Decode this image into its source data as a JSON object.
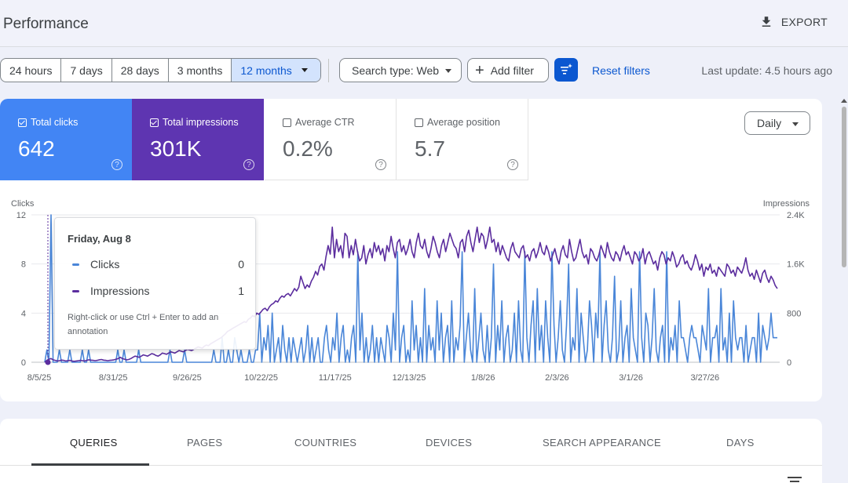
{
  "header": {
    "title": "Performance",
    "export_label": "EXPORT",
    "export_icon": "download-icon"
  },
  "filters": {
    "date_ranges": [
      "24 hours",
      "7 days",
      "28 days",
      "3 months",
      "12 months"
    ],
    "active_range": "12 months",
    "search_type": "Search type: Web",
    "add_filter": "Add filter",
    "reset_filters": "Reset filters",
    "last_update": "Last update: 4.5 hours ago"
  },
  "metrics": {
    "clicks": {
      "label": "Total clicks",
      "value": "642",
      "checked": true,
      "color": "#4285f4"
    },
    "impressions": {
      "label": "Total impressions",
      "value": "301K",
      "checked": true,
      "color": "#5e35b1"
    },
    "ctr": {
      "label": "Average CTR",
      "value": "0.2%",
      "checked": false
    },
    "position": {
      "label": "Average position",
      "value": "5.7",
      "checked": false
    }
  },
  "granularity": "Daily",
  "tooltip": {
    "date": "Friday, Aug 8",
    "clicks_label": "Clicks",
    "clicks_value": "0",
    "impressions_label": "Impressions",
    "impressions_value": "1",
    "note": "Right-click or use Ctrl + Enter to add an annotation"
  },
  "chart_data": {
    "type": "line",
    "left_axis": {
      "label": "Clicks",
      "ticks": [
        "0",
        "4",
        "8",
        "12"
      ],
      "range": [
        0,
        12
      ]
    },
    "right_axis": {
      "label": "Impressions",
      "ticks": [
        "0",
        "800",
        "1.6K",
        "2.4K"
      ],
      "range": [
        0,
        2400
      ]
    },
    "x_ticks": [
      "8/5/25",
      "8/31/25",
      "9/26/25",
      "10/22/25",
      "11/17/25",
      "12/13/25",
      "1/8/26",
      "2/3/26",
      "3/1/26",
      "3/27/26"
    ],
    "grid": true,
    "series": [
      {
        "name": "Clicks",
        "axis": "left",
        "color": "#4a86d8",
        "values": [
          0,
          1,
          0,
          12,
          0,
          0,
          0,
          1,
          0,
          0,
          0,
          0,
          1,
          0,
          0,
          0,
          0,
          0,
          1,
          0,
          0,
          1,
          0,
          0,
          0,
          0,
          0,
          0,
          0,
          0,
          0,
          0,
          0,
          0,
          0,
          1,
          0,
          0,
          1,
          0,
          0,
          0,
          0,
          0,
          0,
          1,
          0,
          0,
          0,
          0,
          0,
          0,
          0,
          0,
          0,
          0,
          0,
          0,
          0,
          0,
          1,
          0,
          0,
          0,
          0,
          0,
          0,
          1,
          0,
          0,
          0,
          0,
          0,
          0,
          0,
          0,
          0,
          0,
          0,
          0,
          0,
          1,
          0,
          0,
          0,
          2,
          0,
          0,
          1,
          0,
          0,
          2,
          1,
          0,
          1,
          0,
          0,
          0,
          1,
          0,
          0,
          1,
          1,
          4,
          0,
          2,
          1,
          3,
          0,
          4,
          0,
          1,
          2,
          0,
          3,
          1,
          0,
          2,
          0,
          2,
          1,
          0,
          1,
          2,
          0,
          1,
          3,
          0,
          2,
          0,
          1,
          2,
          0,
          0,
          2,
          3,
          1,
          0,
          2,
          1,
          4,
          0,
          2,
          3,
          0,
          1,
          0,
          2,
          3,
          0,
          9,
          1,
          4,
          0,
          2,
          0,
          1,
          3,
          0,
          2,
          0,
          2,
          1,
          0,
          3,
          2,
          0,
          4,
          1,
          9,
          0,
          2,
          3,
          0,
          1,
          0,
          5,
          1,
          3,
          0,
          2,
          0,
          6,
          0,
          3,
          1,
          2,
          0,
          5,
          1,
          4,
          0,
          2,
          3,
          0,
          5,
          0,
          2,
          1,
          3,
          9,
          0,
          2,
          4,
          1,
          0,
          6,
          0,
          2,
          4,
          1,
          0,
          3,
          0,
          2,
          8,
          0,
          3,
          1,
          5,
          0,
          2,
          3,
          0,
          1,
          4,
          0,
          5,
          1,
          0,
          9,
          2,
          0,
          3,
          5,
          0,
          6,
          1,
          3,
          0,
          5,
          2,
          0,
          9,
          3,
          0,
          2,
          5,
          1,
          0,
          3,
          8,
          0,
          2,
          1,
          6,
          0,
          4,
          2,
          0,
          1,
          5,
          3,
          0,
          4,
          2,
          9,
          0,
          3,
          5,
          1,
          0,
          2,
          7,
          0,
          1,
          5,
          0,
          2,
          3,
          0,
          6,
          2,
          1,
          0,
          9,
          2,
          0,
          4,
          3,
          0,
          2,
          6,
          1,
          0,
          2,
          3,
          0,
          9,
          0,
          2,
          1,
          3,
          0,
          5,
          2,
          2,
          1,
          0,
          2,
          3,
          2,
          2,
          1,
          0,
          3,
          2,
          1,
          6,
          0,
          2,
          2,
          3,
          0,
          6,
          1,
          2,
          0,
          4,
          0,
          5,
          2,
          1,
          2,
          2,
          0,
          3,
          0,
          1,
          2,
          2,
          0,
          4,
          0,
          3,
          2,
          1,
          2,
          4,
          2,
          2,
          2
        ]
      },
      {
        "name": "Impressions",
        "axis": "right",
        "color": "#5b2d9e",
        "values": [
          1,
          30,
          50,
          60,
          40,
          30,
          20,
          25,
          35,
          30,
          20,
          25,
          30,
          20,
          15,
          20,
          25,
          30,
          25,
          20,
          30,
          40,
          35,
          30,
          25,
          30,
          40,
          45,
          35,
          30,
          25,
          30,
          35,
          40,
          50,
          60,
          80,
          60,
          50,
          40,
          45,
          60,
          80,
          100,
          90,
          80,
          100,
          120,
          110,
          100,
          120,
          140,
          130,
          110,
          100,
          120,
          150,
          140,
          130,
          150,
          170,
          160,
          150,
          170,
          190,
          180,
          170,
          190,
          210,
          200,
          190,
          210,
          230,
          250,
          240,
          230,
          260,
          280,
          270,
          300,
          320,
          340,
          360,
          380,
          400,
          430,
          460,
          500,
          520,
          540,
          560,
          580,
          600,
          620,
          640,
          660,
          650,
          700,
          720,
          760,
          740,
          800,
          780,
          820,
          860,
          880,
          840,
          900,
          940,
          960,
          1000,
          980,
          1040,
          1080,
          1060,
          1100,
          1120,
          1080,
          1140,
          1200,
          1160,
          1220,
          1400,
          1300,
          1200,
          1260,
          1220,
          1320,
          1380,
          1480,
          1420,
          1560,
          1600,
          1500,
          1720,
          1900,
          1760,
          2200,
          1700,
          2000,
          1800,
          1900,
          1700,
          2100,
          2050,
          1700,
          1900,
          1750,
          2000,
          1800,
          1650,
          1700,
          1900,
          1600,
          1750,
          1850,
          1700,
          1950,
          1800,
          1900,
          1750,
          1850,
          1650,
          1900,
          1800,
          2050,
          1850,
          1700,
          1950,
          2000,
          1800,
          1900,
          1750,
          1850,
          2000,
          1800,
          1700,
          1950,
          2100,
          1900,
          1850,
          2000,
          1800,
          1700,
          1850,
          2050,
          1950,
          1800,
          1700,
          1900,
          2000,
          1800,
          1950,
          2100,
          2000,
          1900,
          1850,
          1700,
          1950,
          2000,
          1800,
          2050,
          2150,
          1950,
          1800,
          2000,
          2200,
          1950,
          2100,
          2050,
          1850,
          2000,
          2200,
          1950,
          2000,
          1800,
          1950,
          1750,
          1900,
          1800,
          1700,
          1650,
          1850,
          1950,
          1800,
          1750,
          1700,
          1850,
          1900,
          1700,
          1750,
          1650,
          1800,
          1850,
          1700,
          1800,
          1950,
          1800,
          1750,
          1900,
          1800,
          1650,
          1750,
          1850,
          1700,
          1600,
          1800,
          1900,
          1750,
          1700,
          2000,
          1800,
          1650,
          1700,
          1850,
          2000,
          1800,
          1700,
          1750,
          1600,
          1850,
          1800,
          1700,
          1650,
          1750,
          1900,
          1800,
          1700,
          1950,
          1800,
          1700,
          1650,
          1800,
          1750,
          1650,
          1800,
          1900,
          1750,
          1800,
          1700,
          1600,
          1800,
          1750,
          1650,
          1700,
          1850,
          1600,
          1750,
          1800,
          1700,
          1600,
          1650,
          1500,
          1700,
          1800,
          1750,
          1600,
          1700,
          1650,
          1800,
          1700,
          1550,
          1600,
          1700,
          1750,
          1600,
          1650,
          1550,
          1500,
          1600,
          1750,
          1650,
          1500,
          1600,
          1400,
          1550,
          1500,
          1600,
          1450,
          1500,
          1400,
          1550,
          1500,
          1450,
          1400,
          1600,
          1550,
          1450,
          1500,
          1400,
          1550,
          1500,
          1450,
          1550,
          1700,
          1500,
          1400,
          1450,
          1350,
          1500,
          1400,
          1300,
          1450,
          1500,
          1380,
          1300,
          1400,
          1340,
          1250,
          1200
        ]
      }
    ]
  },
  "tabs": [
    "QUERIES",
    "PAGES",
    "COUNTRIES",
    "DEVICES",
    "SEARCH APPEARANCE",
    "DAYS"
  ],
  "active_tab": "QUERIES"
}
